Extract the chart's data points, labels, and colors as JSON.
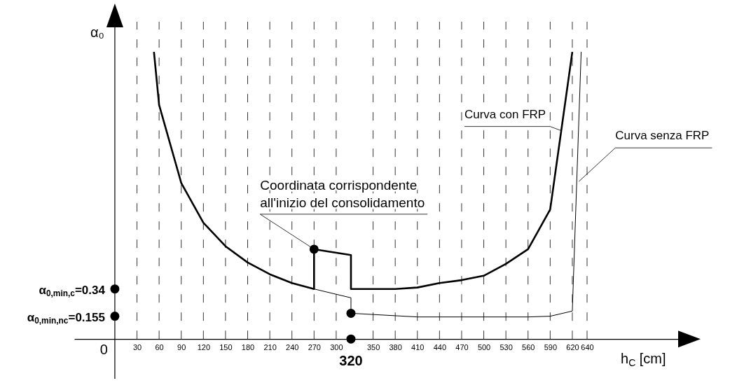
{
  "chart_data": {
    "type": "line",
    "ylabel": "α₀",
    "xlabel": "h$_{C}$ [cm]",
    "xlim": [
      -55,
      790
    ],
    "ylim": [
      -0.27,
      2.25
    ],
    "xticks": [
      30,
      60,
      90,
      120,
      150,
      180,
      210,
      240,
      270,
      300,
      350,
      380,
      410,
      440,
      470,
      500,
      530,
      560,
      590,
      620,
      640
    ],
    "yticks": [
      0.155,
      0.34
    ],
    "grid": "x",
    "legend": false,
    "line_style": "solid",
    "series": [
      {
        "name": "Curva con FRP",
        "color": "#000000",
        "x": [
          53,
          60,
          90,
          120,
          150,
          180,
          210,
          240,
          270,
          270,
          320,
          320,
          350,
          380,
          410,
          440,
          470,
          500,
          530,
          560,
          590,
          620
        ],
        "values": [
          1.95,
          1.59,
          1.06,
          0.79,
          0.63,
          0.52,
          0.44,
          0.38,
          0.34,
          0.61,
          0.57,
          0.34,
          0.34,
          0.34,
          0.35,
          0.38,
          0.4,
          0.43,
          0.51,
          0.61,
          0.88,
          1.95
        ]
      },
      {
        "name": "Curva senza FRP",
        "color": "#000000",
        "x": [
          53,
          60,
          90,
          120,
          150,
          180,
          210,
          240,
          270,
          320,
          320,
          410,
          560,
          590,
          620,
          632
        ],
        "values": [
          1.95,
          1.59,
          1.06,
          0.79,
          0.63,
          0.52,
          0.44,
          0.38,
          0.34,
          0.28,
          0.175,
          0.15,
          0.15,
          0.155,
          0.19,
          1.95
        ]
      },
      {
        "type": "scatter",
        "color": "#000000",
        "marker": "circle",
        "x": [
          0,
          0,
          270,
          320,
          320
        ],
        "values": [
          0.34,
          0.155,
          0.61,
          0.175,
          0
        ]
      }
    ],
    "annotations": [
      "0",
      "α$_{0,min,nc}$=",
      "α$_{0,min,c}$=",
      {
        "text": "Coordinata corrispondente\nall'inizio del consolidamento",
        "x": 270,
        "y": 0.61
      },
      {
        "text": "320",
        "x": 320,
        "y": 0
      }
    ]
  }
}
